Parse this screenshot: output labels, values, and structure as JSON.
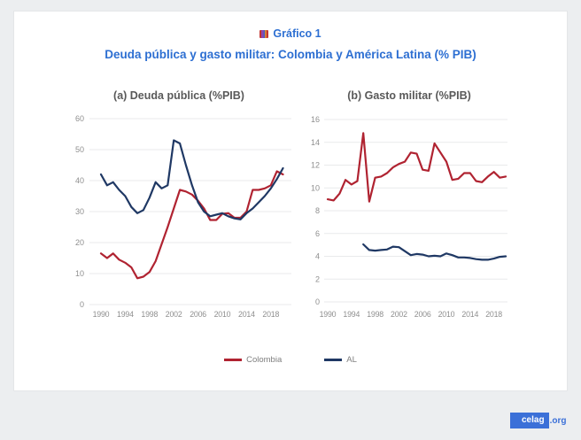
{
  "header": {
    "figure_label": "Gráfico 1",
    "title": "Deuda pública y gasto militar: Colombia y América Latina (% PIB)",
    "icon": "bar-chart-icon"
  },
  "colors": {
    "accent_blue": "#2d6fd2",
    "badge_blue": "#3b70d8",
    "line_red": "#b02331",
    "line_navy": "#1f3864",
    "page_background": "#eceef0",
    "card_background": "#ffffff",
    "axis_text": "#8f8f8f",
    "chart_title_text": "#595959",
    "legend_text": "#7f7f7f",
    "gridline": "#e9eaeb"
  },
  "legend": [
    {
      "label": "Colombia",
      "color": "#b02331"
    },
    {
      "label": "AL",
      "color": "#1f3864"
    }
  ],
  "footer": {
    "brand": "celag",
    "brand_suffix": ".org"
  },
  "chart_data": [
    {
      "type": "line",
      "title": "(a) Deuda pública (%PIB)",
      "xlabel": "",
      "ylabel": "",
      "ylim": [
        0,
        60
      ],
      "ytick_step": 10,
      "xticks": [
        1990,
        1994,
        1998,
        2002,
        2006,
        2010,
        2014,
        2018
      ],
      "grid": "horizontal",
      "legend_position": "shared-bottom-center",
      "x": [
        1990,
        1991,
        1992,
        1993,
        1994,
        1995,
        1996,
        1997,
        1998,
        1999,
        2000,
        2001,
        2002,
        2003,
        2004,
        2005,
        2006,
        2007,
        2008,
        2009,
        2010,
        2011,
        2012,
        2013,
        2014,
        2015,
        2016,
        2017,
        2018,
        2019,
        2020
      ],
      "series": [
        {
          "name": "Colombia",
          "color": "#b02331",
          "values": [
            16.5,
            15,
            16.5,
            14.5,
            13.5,
            12,
            8.5,
            9,
            10.5,
            14,
            19.5,
            25,
            31,
            37,
            36.5,
            35.5,
            33.5,
            31,
            27.3,
            27.3,
            29.3,
            29.5,
            28,
            28,
            30,
            37,
            37,
            37.5,
            38.5,
            43,
            42
          ]
        },
        {
          "name": "AL",
          "color": "#1f3864",
          "values": [
            42,
            38.5,
            39.5,
            37,
            35,
            31.5,
            29.5,
            30.5,
            34.5,
            39.5,
            37.5,
            38.5,
            53,
            52,
            45,
            38.5,
            33,
            30,
            28.5,
            29,
            29.5,
            28.5,
            27.8,
            27.5,
            29.5,
            31,
            33,
            35,
            37.5,
            40.5,
            44
          ]
        }
      ]
    },
    {
      "type": "line",
      "title": "(b) Gasto militar (%PIB)",
      "xlabel": "",
      "ylabel": "",
      "ylim": [
        0,
        16
      ],
      "ytick_step": 2,
      "xticks": [
        1990,
        1994,
        1998,
        2002,
        2006,
        2010,
        2014,
        2018
      ],
      "grid": "horizontal",
      "legend_position": "shared-bottom-center",
      "x": [
        1990,
        1991,
        1992,
        1993,
        1994,
        1995,
        1996,
        1997,
        1998,
        1999,
        2000,
        2001,
        2002,
        2003,
        2004,
        2005,
        2006,
        2007,
        2008,
        2009,
        2010,
        2011,
        2012,
        2013,
        2014,
        2015,
        2016,
        2017,
        2018,
        2019,
        2020
      ],
      "series": [
        {
          "name": "Colombia",
          "color": "#b02331",
          "values": [
            9,
            8.9,
            9.5,
            10.7,
            10.3,
            10.6,
            14.8,
            8.8,
            10.9,
            11,
            11.3,
            11.8,
            12.1,
            12.3,
            13.1,
            13,
            11.6,
            11.5,
            13.9,
            13.1,
            12.3,
            10.7,
            10.8,
            11.3,
            11.3,
            10.6,
            10.5,
            11,
            11.4,
            10.9,
            11
          ]
        },
        {
          "name": "AL",
          "color": "#1f3864",
          "values": [
            null,
            null,
            null,
            null,
            null,
            null,
            5.05,
            4.55,
            4.5,
            4.55,
            4.6,
            4.85,
            4.8,
            4.45,
            4.1,
            4.2,
            4.15,
            4,
            4.05,
            4,
            4.25,
            4.1,
            3.9,
            3.9,
            3.85,
            3.75,
            3.7,
            3.7,
            3.8,
            3.95,
            4
          ]
        }
      ]
    }
  ]
}
